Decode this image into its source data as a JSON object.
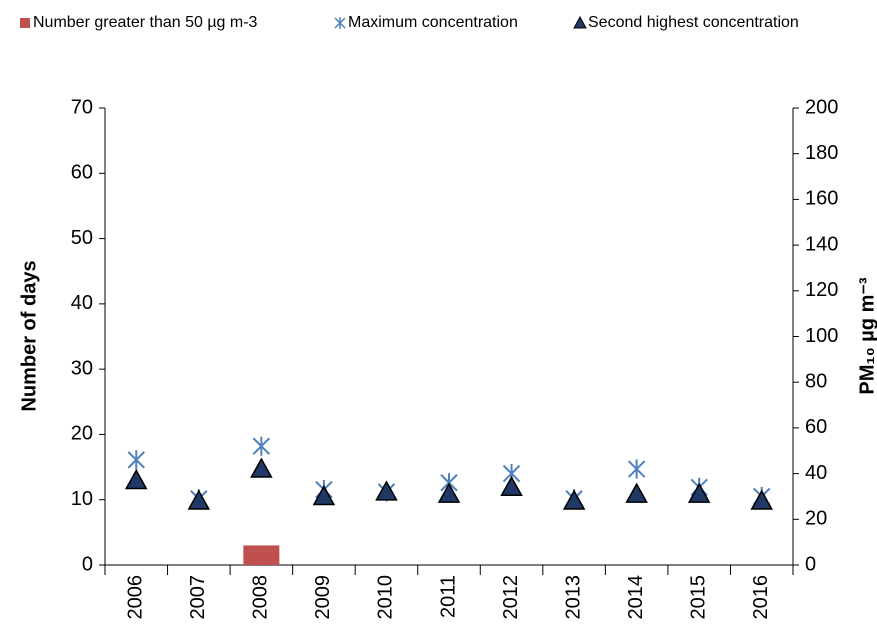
{
  "chart_data": {
    "type": "combo",
    "categories": [
      "2006",
      "2007",
      "2008",
      "2009",
      "2010",
      "2011",
      "2012",
      "2013",
      "2014",
      "2015",
      "2016"
    ],
    "y_label": "Number of days",
    "y2_label": "PM₁₀ µg m⁻³",
    "ylim": [
      0,
      70
    ],
    "yticks": [
      0,
      10,
      20,
      30,
      40,
      50,
      60,
      70
    ],
    "y2lim": [
      0,
      200
    ],
    "y2ticks": [
      0,
      20,
      40,
      60,
      80,
      100,
      120,
      140,
      160,
      180,
      200
    ],
    "series": [
      {
        "name": "Number greater than 50 µg m-3",
        "type": "bar",
        "color": "#c0504d",
        "values": [
          0,
          0,
          3,
          0,
          0,
          0,
          0,
          0,
          0,
          0,
          0
        ]
      },
      {
        "name": "Maximum concentration",
        "type": "cross",
        "axis": "y2",
        "color": "#4f81bd",
        "values": [
          46,
          29,
          52,
          33,
          32,
          36,
          40,
          29,
          42,
          34,
          30
        ]
      },
      {
        "name": "Second highest concentration",
        "type": "triangle",
        "axis": "y2",
        "color": "#1f3864",
        "values": [
          37,
          28,
          42,
          30,
          32,
          31,
          34,
          28,
          31,
          31,
          28
        ]
      }
    ]
  }
}
